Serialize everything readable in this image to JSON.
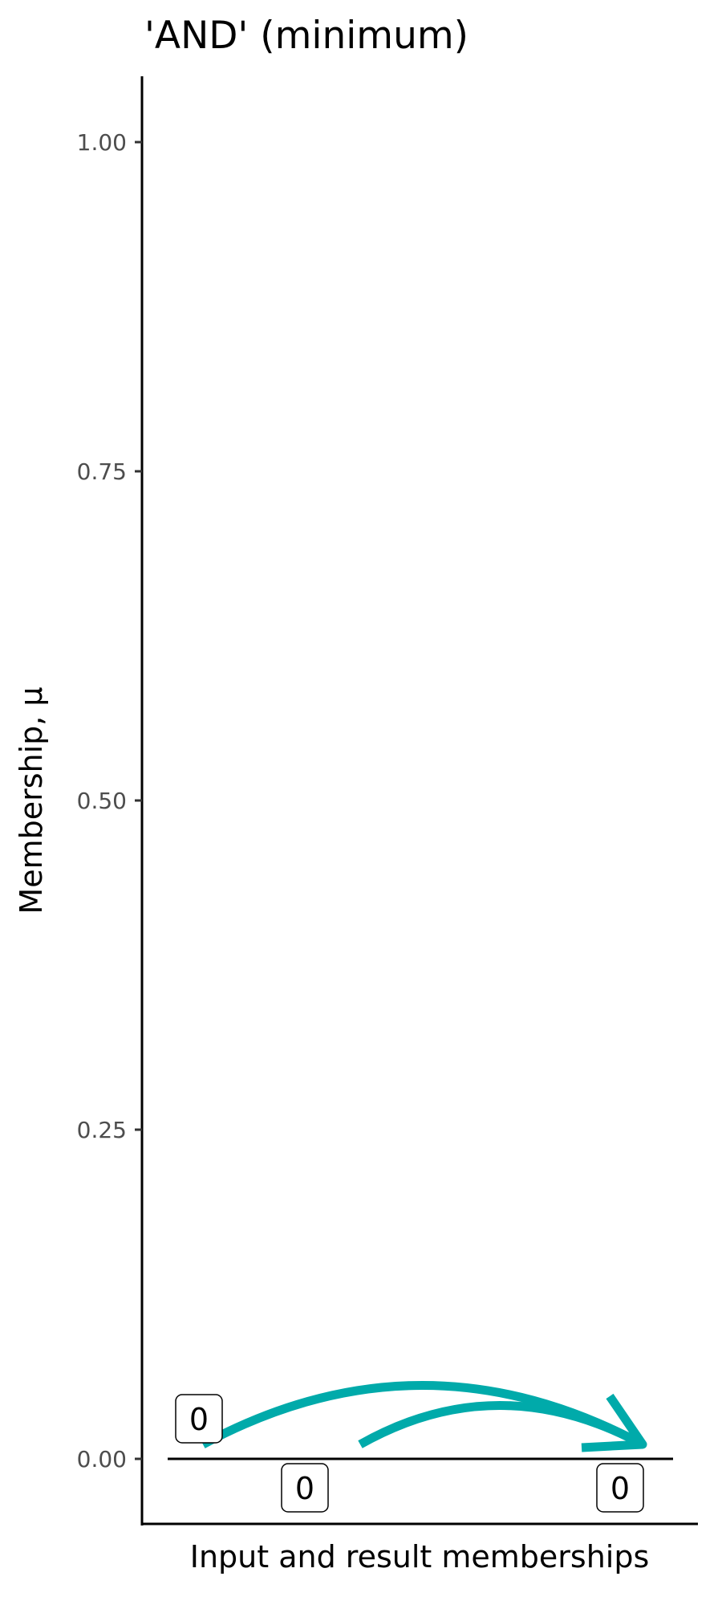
{
  "chart_data": {
    "type": "line",
    "title": "'AND' (minimum)",
    "xlabel": "Input and result memberships",
    "ylabel": "Membership, μ",
    "ylim": [
      -0.05,
      1.05
    ],
    "yticks": [
      0.0,
      0.25,
      0.5,
      0.75,
      1.0
    ],
    "ytick_labels": [
      "0.00",
      "0.25",
      "0.50",
      "0.75",
      "1.00"
    ],
    "grid": false,
    "baseline": 0,
    "points": [
      {
        "role": "input",
        "value": 0,
        "label": "0"
      },
      {
        "role": "input",
        "value": 0,
        "label": "0"
      },
      {
        "role": "result",
        "value": 0,
        "label": "0"
      }
    ],
    "arrow_color": "#00AAAA"
  }
}
